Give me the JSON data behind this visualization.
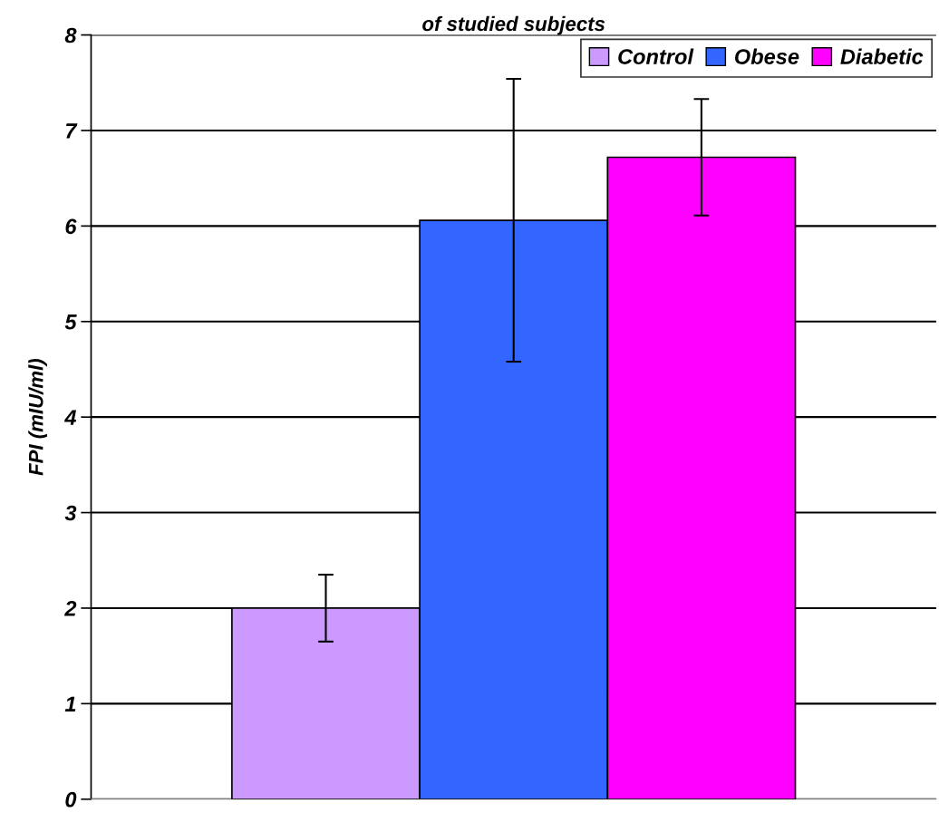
{
  "chart_data": {
    "type": "bar",
    "title": "of studied subjects",
    "ylabel": "FPI (mIU/ml)",
    "categories": [
      null
    ],
    "series": [
      {
        "name": "Control",
        "color": "#cc99ff",
        "values": [
          2.0
        ],
        "errors": [
          0.35
        ]
      },
      {
        "name": "Obese",
        "color": "#3366ff",
        "values": [
          6.06
        ],
        "errors": [
          1.48
        ]
      },
      {
        "name": "Diabetic",
        "color": "#ff00ff",
        "values": [
          6.72
        ],
        "errors": [
          0.61
        ]
      }
    ],
    "ylim": [
      0,
      8
    ],
    "yticks": [
      0,
      1,
      2,
      3,
      4,
      5,
      6,
      7,
      8
    ],
    "grid": "y",
    "legend": "top right"
  }
}
